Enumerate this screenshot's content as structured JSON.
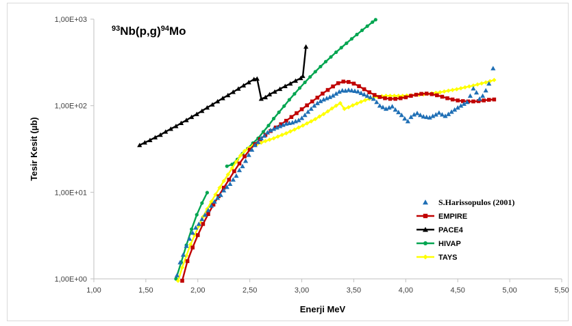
{
  "chart_data": {
    "type": "scatter",
    "title_parts": {
      "a_mass": "93",
      "a_elem": "Nb(p,g)",
      "b_mass": "94",
      "b_elem": "Mo"
    },
    "xlabel": "Enerji MeV",
    "ylabel": "Tesir Kesit (µb)",
    "xlim": [
      1.0,
      5.5
    ],
    "ylim": [
      1,
      1000
    ],
    "y_scale": "log",
    "x_ticks": [
      "1,00",
      "1,50",
      "2,00",
      "2,50",
      "3,00",
      "3,50",
      "4,00",
      "4,50",
      "5,00",
      "5,50"
    ],
    "y_ticks": [
      "1,00E+00",
      "1,00E+01",
      "1,00E+02",
      "1,00E+03"
    ],
    "legend_position": "right",
    "grid": false,
    "series": [
      {
        "name": "S.Harissopulos (2001)",
        "color": "#1f6fb5",
        "marker": "triangle",
        "line": false,
        "points": [
          [
            1.8,
            1.1
          ],
          [
            1.83,
            1.55
          ],
          [
            1.86,
            1.9
          ],
          [
            1.89,
            2.4
          ],
          [
            1.92,
            2.9
          ],
          [
            1.95,
            3.4
          ],
          [
            1.98,
            3.9
          ],
          [
            2.01,
            4.3
          ],
          [
            2.04,
            4.9
          ],
          [
            2.07,
            5.5
          ],
          [
            2.1,
            6.2
          ],
          [
            2.13,
            7.0
          ],
          [
            2.16,
            7.8
          ],
          [
            2.19,
            8.6
          ],
          [
            2.22,
            9.3
          ],
          [
            2.25,
            10.5
          ],
          [
            2.28,
            11.5
          ],
          [
            2.31,
            12.5
          ],
          [
            2.34,
            14
          ],
          [
            2.37,
            15.5
          ],
          [
            2.4,
            18
          ],
          [
            2.43,
            20
          ],
          [
            2.46,
            23
          ],
          [
            2.49,
            27
          ],
          [
            2.52,
            31
          ],
          [
            2.55,
            35
          ],
          [
            2.58,
            38
          ],
          [
            2.61,
            42
          ],
          [
            2.64,
            45
          ],
          [
            2.67,
            49
          ],
          [
            2.7,
            52
          ],
          [
            2.73,
            54
          ],
          [
            2.76,
            56
          ],
          [
            2.79,
            58
          ],
          [
            2.82,
            60
          ],
          [
            2.85,
            62
          ],
          [
            2.88,
            63
          ],
          [
            2.91,
            64
          ],
          [
            2.94,
            66
          ],
          [
            2.97,
            68
          ],
          [
            3.0,
            72
          ],
          [
            3.03,
            78
          ],
          [
            3.06,
            85
          ],
          [
            3.09,
            92
          ],
          [
            3.12,
            100
          ],
          [
            3.15,
            107
          ],
          [
            3.18,
            113
          ],
          [
            3.21,
            118
          ],
          [
            3.24,
            122
          ],
          [
            3.27,
            126
          ],
          [
            3.3,
            131
          ],
          [
            3.33,
            138
          ],
          [
            3.36,
            145
          ],
          [
            3.39,
            150
          ],
          [
            3.42,
            149
          ],
          [
            3.45,
            152
          ],
          [
            3.48,
            150
          ],
          [
            3.51,
            148
          ],
          [
            3.54,
            146
          ],
          [
            3.57,
            140
          ],
          [
            3.6,
            135
          ],
          [
            3.63,
            130
          ],
          [
            3.66,
            125
          ],
          [
            3.69,
            120
          ],
          [
            3.72,
            110
          ],
          [
            3.75,
            100
          ],
          [
            3.78,
            96
          ],
          [
            3.81,
            92
          ],
          [
            3.84,
            95
          ],
          [
            3.87,
            98
          ],
          [
            3.9,
            90
          ],
          [
            3.93,
            84
          ],
          [
            3.96,
            78
          ],
          [
            3.99,
            71
          ],
          [
            4.02,
            66
          ],
          [
            4.05,
            74
          ],
          [
            4.08,
            79
          ],
          [
            4.11,
            82
          ],
          [
            4.14,
            78
          ],
          [
            4.17,
            75
          ],
          [
            4.2,
            74
          ],
          [
            4.23,
            73
          ],
          [
            4.26,
            76
          ],
          [
            4.29,
            79
          ],
          [
            4.32,
            83
          ],
          [
            4.35,
            79
          ],
          [
            4.38,
            76
          ],
          [
            4.41,
            80
          ],
          [
            4.44,
            85
          ],
          [
            4.47,
            90
          ],
          [
            4.5,
            95
          ],
          [
            4.53,
            100
          ],
          [
            4.56,
            105
          ],
          [
            4.59,
            110
          ],
          [
            4.62,
            130
          ],
          [
            4.65,
            158
          ],
          [
            4.68,
            142
          ],
          [
            4.71,
            120
          ],
          [
            4.74,
            130
          ],
          [
            4.77,
            150
          ],
          [
            4.8,
            180
          ],
          [
            4.84,
            270
          ]
        ]
      },
      {
        "name": "EMPIRE",
        "color": "#c00000",
        "marker": "square",
        "line": true,
        "points": [
          [
            1.85,
            0.95
          ],
          [
            1.9,
            1.6
          ],
          [
            1.95,
            2.3
          ],
          [
            2.0,
            3.2
          ],
          [
            2.05,
            4.3
          ],
          [
            2.1,
            5.6
          ],
          [
            2.15,
            7.2
          ],
          [
            2.2,
            9.0
          ],
          [
            2.25,
            11.3
          ],
          [
            2.3,
            14
          ],
          [
            2.35,
            17.5
          ],
          [
            2.4,
            21.5
          ],
          [
            2.45,
            26
          ],
          [
            2.5,
            31
          ],
          [
            2.55,
            36
          ],
          [
            2.6,
            41
          ],
          [
            2.65,
            46
          ],
          [
            2.7,
            51
          ],
          [
            2.75,
            56
          ],
          [
            2.8,
            61
          ],
          [
            2.85,
            67
          ],
          [
            2.9,
            74
          ],
          [
            2.95,
            82
          ],
          [
            3.0,
            91
          ],
          [
            3.05,
            101
          ],
          [
            3.1,
            112
          ],
          [
            3.15,
            124
          ],
          [
            3.2,
            138
          ],
          [
            3.25,
            152
          ],
          [
            3.3,
            167
          ],
          [
            3.35,
            182
          ],
          [
            3.4,
            190
          ],
          [
            3.45,
            188
          ],
          [
            3.5,
            180
          ],
          [
            3.55,
            168
          ],
          [
            3.6,
            155
          ],
          [
            3.65,
            143
          ],
          [
            3.7,
            133
          ],
          [
            3.75,
            126
          ],
          [
            3.8,
            122
          ],
          [
            3.85,
            120
          ],
          [
            3.9,
            120
          ],
          [
            3.95,
            122
          ],
          [
            4.0,
            125
          ],
          [
            4.05,
            130
          ],
          [
            4.1,
            134
          ],
          [
            4.15,
            137
          ],
          [
            4.2,
            138
          ],
          [
            4.25,
            136
          ],
          [
            4.3,
            132
          ],
          [
            4.35,
            127
          ],
          [
            4.4,
            122
          ],
          [
            4.45,
            118
          ],
          [
            4.5,
            115
          ],
          [
            4.55,
            113
          ],
          [
            4.6,
            112
          ],
          [
            4.65,
            112
          ],
          [
            4.7,
            113
          ],
          [
            4.75,
            115
          ],
          [
            4.8,
            117
          ],
          [
            4.85,
            118
          ]
        ]
      },
      {
        "name": "PACE4",
        "color": "#000000",
        "marker": "triangle",
        "line": true,
        "points": [
          [
            1.44,
            35
          ],
          [
            1.49,
            37.5
          ],
          [
            1.54,
            40
          ],
          [
            1.59,
            43
          ],
          [
            1.64,
            46
          ],
          [
            1.69,
            50
          ],
          [
            1.74,
            54
          ],
          [
            1.79,
            58
          ],
          [
            1.84,
            63
          ],
          [
            1.89,
            68
          ],
          [
            1.94,
            74
          ],
          [
            1.99,
            80
          ],
          [
            2.04,
            87
          ],
          [
            2.09,
            95
          ],
          [
            2.14,
            103
          ],
          [
            2.19,
            112
          ],
          [
            2.24,
            122
          ],
          [
            2.29,
            132
          ],
          [
            2.34,
            144
          ],
          [
            2.39,
            157
          ],
          [
            2.44,
            171
          ],
          [
            2.49,
            186
          ],
          [
            2.54,
            202
          ],
          [
            2.57,
            205
          ],
          [
            2.61,
            120
          ],
          [
            2.65,
            125
          ],
          [
            2.69,
            135
          ],
          [
            2.74,
            145
          ],
          [
            2.79,
            156
          ],
          [
            2.84,
            168
          ],
          [
            2.89,
            180
          ],
          [
            2.94,
            194
          ],
          [
            2.99,
            208
          ],
          [
            3.01,
            220
          ],
          [
            3.04,
            480
          ]
        ]
      },
      {
        "name": "HIVAP",
        "color": "#00a550",
        "marker": "circle",
        "line": true,
        "points": [
          [
            1.79,
            1.0
          ],
          [
            1.84,
            1.55
          ],
          [
            1.89,
            2.45
          ],
          [
            1.94,
            3.75
          ],
          [
            1.99,
            5.5
          ],
          [
            2.04,
            7.5
          ],
          [
            2.09,
            9.9
          ],
          [
            2.28,
            20
          ],
          [
            2.33,
            21
          ],
          [
            2.38,
            24
          ],
          [
            2.43,
            28
          ],
          [
            2.48,
            32
          ],
          [
            2.53,
            37
          ],
          [
            2.58,
            42
          ],
          [
            2.63,
            50
          ],
          [
            2.68,
            59
          ],
          [
            2.73,
            71
          ],
          [
            2.78,
            84
          ],
          [
            2.83,
            99
          ],
          [
            2.88,
            117
          ],
          [
            2.93,
            137
          ],
          [
            2.98,
            160
          ],
          [
            3.03,
            186
          ],
          [
            3.08,
            215
          ],
          [
            3.13,
            247
          ],
          [
            3.18,
            283
          ],
          [
            3.23,
            323
          ],
          [
            3.28,
            366
          ],
          [
            3.33,
            415
          ],
          [
            3.38,
            468
          ],
          [
            3.43,
            527
          ],
          [
            3.48,
            592
          ],
          [
            3.53,
            664
          ],
          [
            3.58,
            743
          ],
          [
            3.63,
            830
          ],
          [
            3.68,
            925
          ],
          [
            3.71,
            985
          ]
        ]
      },
      {
        "name": "TAYS",
        "color": "#ffff00",
        "marker": "diamond",
        "line": true,
        "points": [
          [
            1.81,
            0.95
          ],
          [
            1.85,
            1.35
          ],
          [
            1.89,
            1.85
          ],
          [
            1.93,
            2.5
          ],
          [
            1.97,
            3.2
          ],
          [
            2.01,
            4.1
          ],
          [
            2.05,
            5.2
          ],
          [
            2.09,
            6.4
          ],
          [
            2.13,
            7.8
          ],
          [
            2.17,
            9.4
          ],
          [
            2.21,
            11.3
          ],
          [
            2.25,
            13.5
          ],
          [
            2.29,
            16
          ],
          [
            2.33,
            19
          ],
          [
            2.37,
            22.5
          ],
          [
            2.41,
            26.5
          ],
          [
            2.45,
            30
          ],
          [
            2.49,
            32.5
          ],
          [
            2.53,
            34.5
          ],
          [
            2.57,
            36
          ],
          [
            2.61,
            37.5
          ],
          [
            2.65,
            39
          ],
          [
            2.69,
            40.5
          ],
          [
            2.73,
            42
          ],
          [
            2.77,
            44
          ],
          [
            2.81,
            46
          ],
          [
            2.85,
            48
          ],
          [
            2.89,
            50.5
          ],
          [
            2.93,
            53
          ],
          [
            2.97,
            56
          ],
          [
            3.01,
            59
          ],
          [
            3.05,
            62.5
          ],
          [
            3.09,
            66
          ],
          [
            3.13,
            70
          ],
          [
            3.17,
            75
          ],
          [
            3.21,
            80
          ],
          [
            3.25,
            86
          ],
          [
            3.29,
            93
          ],
          [
            3.33,
            100
          ],
          [
            3.37,
            107
          ],
          [
            3.41,
            92
          ],
          [
            3.45,
            96
          ],
          [
            3.49,
            101
          ],
          [
            3.53,
            106
          ],
          [
            3.57,
            111
          ],
          [
            3.61,
            116
          ],
          [
            3.65,
            120
          ],
          [
            3.69,
            124
          ],
          [
            3.73,
            127
          ],
          [
            3.77,
            129
          ],
          [
            3.81,
            130
          ],
          [
            3.85,
            130
          ],
          [
            3.89,
            130
          ],
          [
            3.93,
            130
          ],
          [
            3.97,
            130
          ],
          [
            4.01,
            131
          ],
          [
            4.05,
            132
          ],
          [
            4.09,
            133
          ],
          [
            4.13,
            134
          ],
          [
            4.17,
            135
          ],
          [
            4.21,
            137
          ],
          [
            4.25,
            139
          ],
          [
            4.29,
            141
          ],
          [
            4.33,
            143
          ],
          [
            4.37,
            146
          ],
          [
            4.41,
            149
          ],
          [
            4.45,
            152
          ],
          [
            4.49,
            155
          ],
          [
            4.53,
            159
          ],
          [
            4.57,
            163
          ],
          [
            4.61,
            167
          ],
          [
            4.65,
            171
          ],
          [
            4.69,
            176
          ],
          [
            4.73,
            181
          ],
          [
            4.77,
            186
          ],
          [
            4.81,
            192
          ],
          [
            4.85,
            198
          ]
        ]
      }
    ]
  }
}
